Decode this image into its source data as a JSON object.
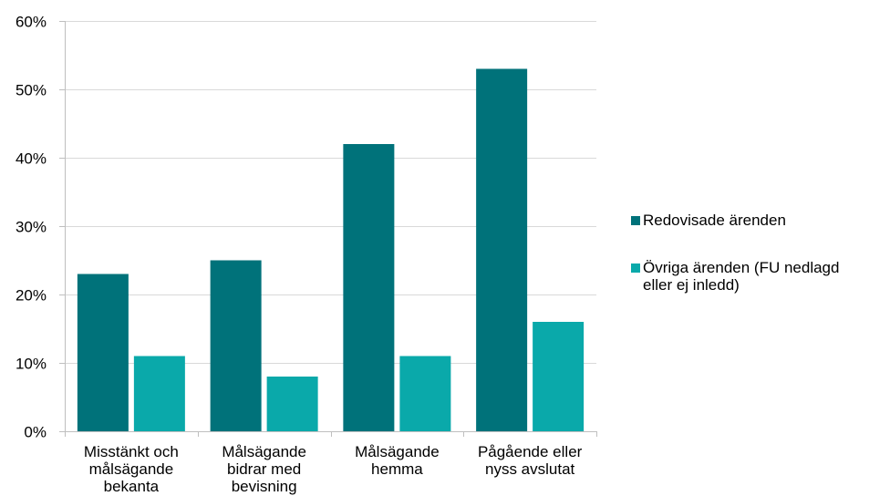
{
  "chart_data": {
    "type": "bar",
    "categories": [
      "Misstänkt och\nmålsägande\nbekanta",
      "Målsägande\nbidrar med\nbevisning",
      "Målsägande\nhemma",
      "Pågående eller\nnyss avslutat"
    ],
    "series": [
      {
        "name": "Redovisade ärenden",
        "values": [
          23,
          25,
          42,
          53
        ],
        "color": "#00727A"
      },
      {
        "name": "Övriga ärenden (FU nedlagd\neller ej inledd)",
        "values": [
          11,
          8,
          11,
          16
        ],
        "color": "#0AA9AA"
      }
    ],
    "ylim": [
      0,
      60
    ],
    "yticks": [
      0,
      10,
      20,
      30,
      40,
      50,
      60
    ],
    "ytick_labels": [
      "0%",
      "10%",
      "20%",
      "30%",
      "40%",
      "50%",
      "60%"
    ],
    "grid": true,
    "legend": "right",
    "title": "",
    "xlabel": "",
    "ylabel": ""
  }
}
